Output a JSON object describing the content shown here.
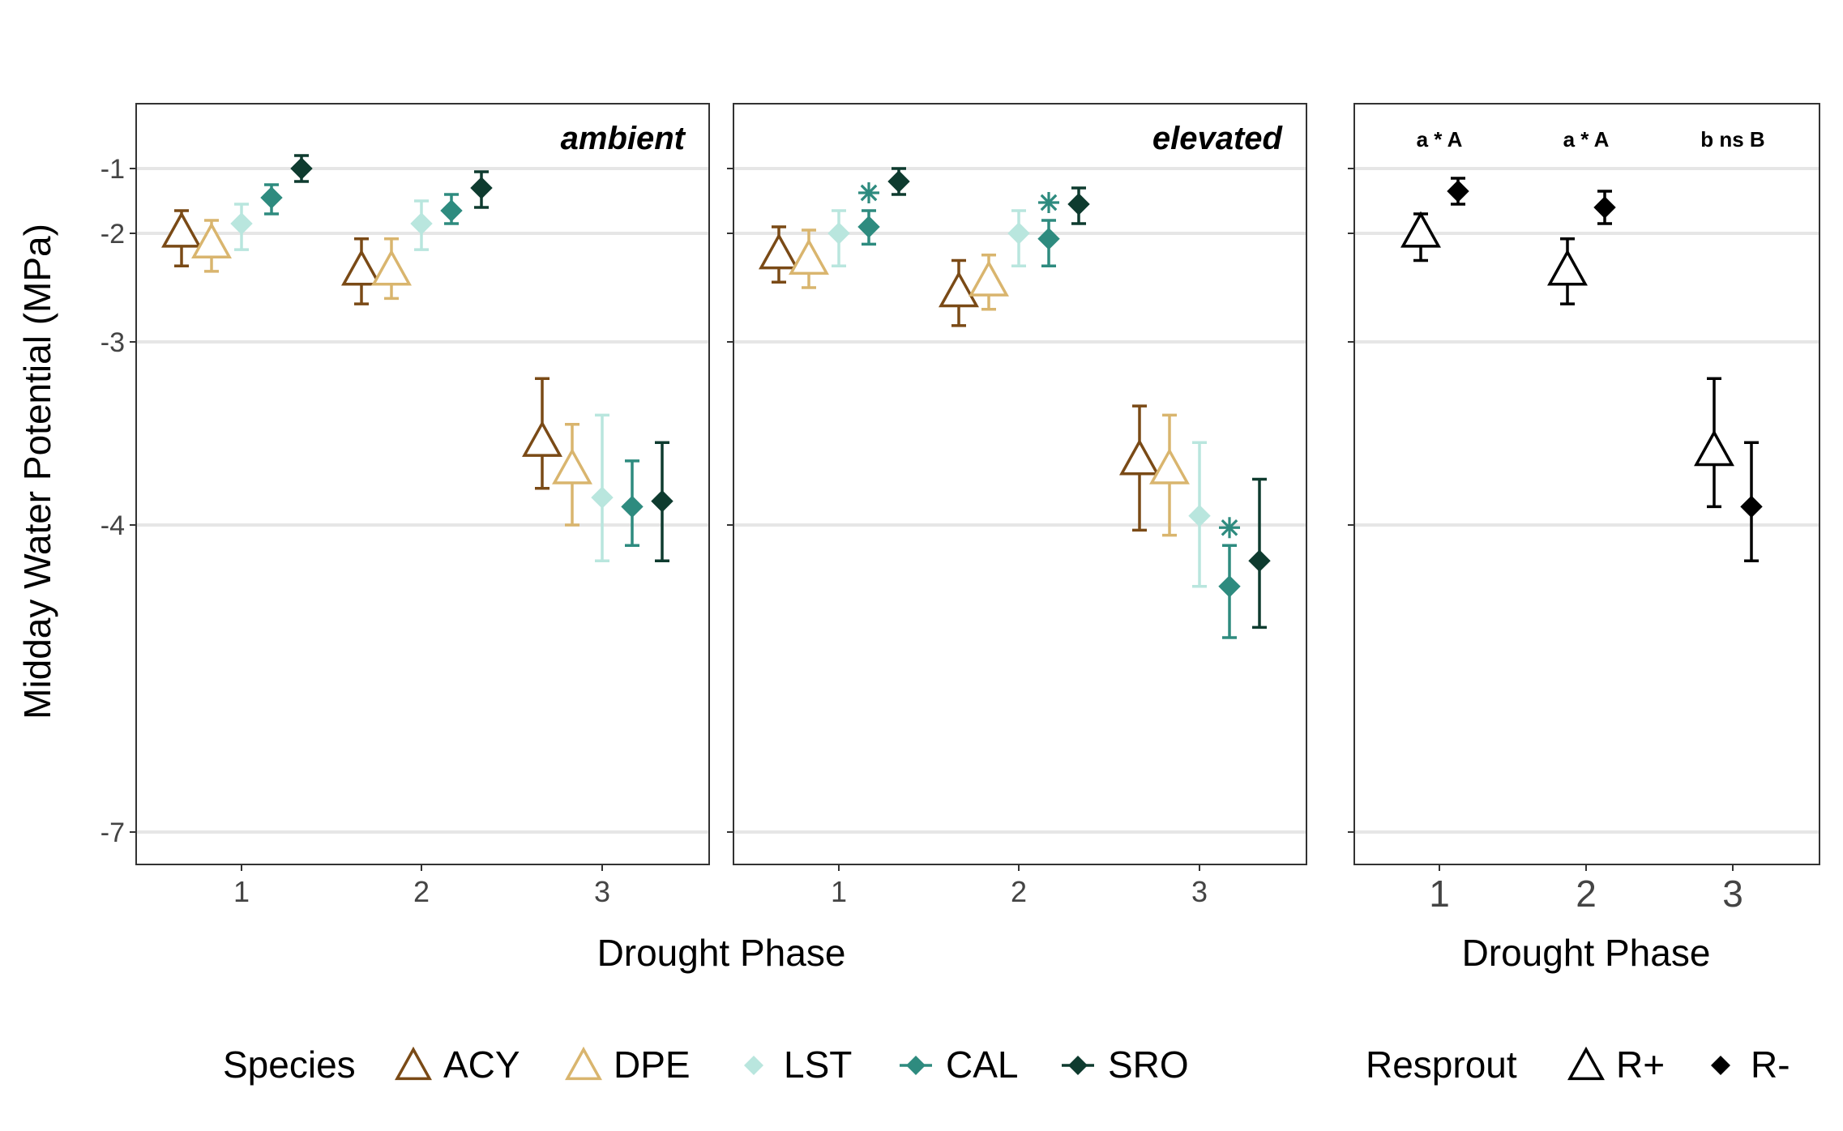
{
  "figure": {
    "ylabel": "Midday Water Potential (MPa)",
    "xlabel": "Drought Phase"
  },
  "colors": {
    "ACY": "#7a4a16",
    "DPE": "#d9b56e",
    "LST": "#b9e6de",
    "CAL": "#2e8b7f",
    "SRO": "#0e3b2f",
    "resprout": "#000000",
    "grid": "#e6e6e6",
    "panel_border": "#333333"
  },
  "chart_data": [
    {
      "type": "scatter",
      "panel": "species-ambient",
      "title": "ambient",
      "x_categories": [
        "1",
        "2",
        "3"
      ],
      "y_ticks": [
        "-1",
        "-2",
        "-3",
        "-4",
        "-7"
      ],
      "series": [
        {
          "name": "ACY",
          "shape": "open-triangle",
          "means": [
            -2.0,
            -2.35,
            -3.55
          ],
          "err_low": [
            -2.3,
            -2.65,
            -3.8
          ],
          "err_high": [
            -1.65,
            -2.05,
            -3.2
          ]
        },
        {
          "name": "DPE",
          "shape": "open-triangle",
          "means": [
            -2.1,
            -2.35,
            -3.7
          ],
          "err_low": [
            -2.35,
            -2.6,
            -4.0
          ],
          "err_high": [
            -1.8,
            -2.05,
            -3.45
          ]
        },
        {
          "name": "LST",
          "shape": "diamond",
          "means": [
            -1.85,
            -1.85,
            -3.85
          ],
          "err_low": [
            -2.15,
            -2.15,
            -4.35
          ],
          "err_high": [
            -1.55,
            -1.5,
            -3.4
          ]
        },
        {
          "name": "CAL",
          "shape": "diamond",
          "means": [
            -1.45,
            -1.65,
            -3.9
          ],
          "err_low": [
            -1.7,
            -1.85,
            -4.2
          ],
          "err_high": [
            -1.25,
            -1.4,
            -3.65
          ]
        },
        {
          "name": "SRO",
          "shape": "diamond",
          "means": [
            -1.0,
            -1.3,
            -3.87
          ],
          "err_low": [
            -1.2,
            -1.6,
            -4.35
          ],
          "err_high": [
            -0.8,
            -1.05,
            -3.55
          ]
        }
      ],
      "significance": []
    },
    {
      "type": "scatter",
      "panel": "species-elevated",
      "title": "elevated",
      "x_categories": [
        "1",
        "2",
        "3"
      ],
      "y_ticks": [
        "-1",
        "-2",
        "-3",
        "-4",
        "-7"
      ],
      "series": [
        {
          "name": "ACY",
          "shape": "open-triangle",
          "means": [
            -2.2,
            -2.55,
            -3.65
          ],
          "err_low": [
            -2.45,
            -2.85,
            -4.05
          ],
          "err_high": [
            -1.9,
            -2.25,
            -3.35
          ]
        },
        {
          "name": "DPE",
          "shape": "open-triangle",
          "means": [
            -2.25,
            -2.45,
            -3.7
          ],
          "err_low": [
            -2.5,
            -2.7,
            -4.1
          ],
          "err_high": [
            -1.95,
            -2.2,
            -3.4
          ]
        },
        {
          "name": "LST",
          "shape": "diamond",
          "means": [
            -2.0,
            -2.0,
            -3.95
          ],
          "err_low": [
            -2.3,
            -2.3,
            -4.6
          ],
          "err_high": [
            -1.65,
            -1.65,
            -3.55
          ]
        },
        {
          "name": "CAL",
          "shape": "diamond",
          "means": [
            -1.9,
            -2.05,
            -4.6
          ],
          "err_low": [
            -2.1,
            -2.3,
            -5.1
          ],
          "err_high": [
            -1.65,
            -1.8,
            -4.2
          ]
        },
        {
          "name": "SRO",
          "shape": "diamond",
          "means": [
            -1.2,
            -1.55,
            -4.35
          ],
          "err_low": [
            -1.4,
            -1.85,
            -5.0
          ],
          "err_high": [
            -1.0,
            -1.3,
            -3.75
          ]
        }
      ],
      "significance": [
        {
          "series": "CAL",
          "phase": "1",
          "label": "*"
        },
        {
          "series": "CAL",
          "phase": "2",
          "label": "*"
        },
        {
          "series": "CAL",
          "phase": "3",
          "label": "*"
        }
      ]
    },
    {
      "type": "scatter",
      "panel": "resprout",
      "x_categories": [
        "1",
        "2",
        "3"
      ],
      "y_ticks": [
        "-1",
        "-2",
        "-3",
        "-4",
        "-7"
      ],
      "series": [
        {
          "name": "R+",
          "shape": "open-triangle",
          "means": [
            -2.0,
            -2.35,
            -3.6
          ],
          "err_low": [
            -2.25,
            -2.65,
            -3.9
          ],
          "err_high": [
            -1.7,
            -2.05,
            -3.2
          ]
        },
        {
          "name": "R-",
          "shape": "diamond",
          "means": [
            -1.35,
            -1.6,
            -3.9
          ],
          "err_low": [
            -1.55,
            -1.85,
            -4.35
          ],
          "err_high": [
            -1.15,
            -1.35,
            -3.55
          ]
        }
      ],
      "annotations": [
        "a * A",
        "a * A",
        "b ns B"
      ]
    }
  ],
  "legends": {
    "species": {
      "title": "Species",
      "items": [
        "ACY",
        "DPE",
        "LST",
        "CAL",
        "SRO"
      ]
    },
    "resprout": {
      "title": "Resprout",
      "items": [
        "R+",
        "R-"
      ]
    }
  }
}
